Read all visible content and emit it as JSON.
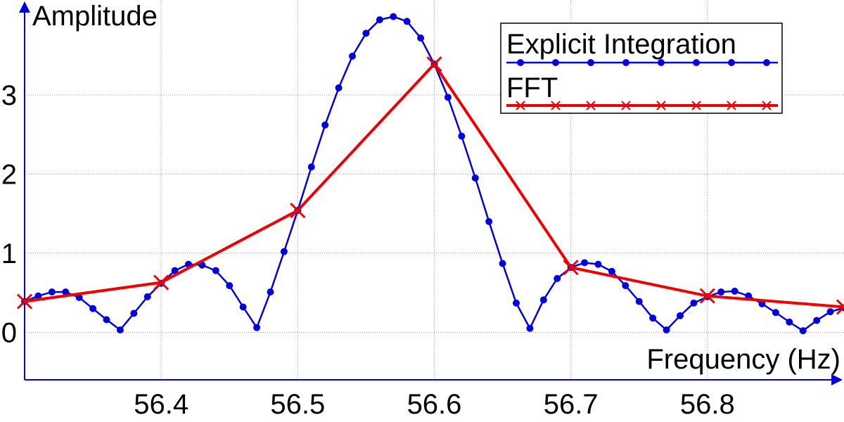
{
  "chart_data": {
    "type": "line",
    "xlabel": "Frequency (Hz)",
    "ylabel": "Amplitude",
    "xlim": [
      56.3,
      56.9
    ],
    "ylim": [
      -0.6,
      4.2
    ],
    "xticks": [
      "56.4",
      "56.5",
      "56.6",
      "56.7",
      "56.8"
    ],
    "yticks": [
      "0",
      "1",
      "2",
      "3"
    ],
    "grid": true,
    "legend": "top-right",
    "series": [
      {
        "name": "Explicit Integration",
        "color": "#0000dd",
        "marker": "dot",
        "x": [
          56.3,
          56.31,
          56.32,
          56.33,
          56.34,
          56.35,
          56.36,
          56.37,
          56.38,
          56.39,
          56.4,
          56.41,
          56.42,
          56.43,
          56.44,
          56.45,
          56.46,
          56.47,
          56.48,
          56.49,
          56.5,
          56.51,
          56.52,
          56.53,
          56.54,
          56.55,
          56.56,
          56.57,
          56.58,
          56.59,
          56.6,
          56.61,
          56.62,
          56.63,
          56.64,
          56.65,
          56.66,
          56.67,
          56.68,
          56.69,
          56.7,
          56.71,
          56.72,
          56.73,
          56.74,
          56.75,
          56.76,
          56.77,
          56.78,
          56.79,
          56.8,
          56.81,
          56.82,
          56.83,
          56.84,
          56.85,
          56.86,
          56.87,
          56.88,
          56.89,
          56.9
        ],
        "y": [
          0.39,
          0.46,
          0.51,
          0.51,
          0.44,
          0.3,
          0.16,
          0.03,
          0.24,
          0.45,
          0.62,
          0.78,
          0.86,
          0.85,
          0.78,
          0.59,
          0.32,
          0.06,
          0.51,
          1.02,
          1.54,
          2.09,
          2.62,
          3.09,
          3.49,
          3.78,
          3.95,
          3.99,
          3.93,
          3.72,
          3.39,
          2.97,
          2.48,
          1.95,
          1.4,
          0.87,
          0.37,
          0.05,
          0.41,
          0.68,
          0.82,
          0.88,
          0.86,
          0.77,
          0.59,
          0.39,
          0.18,
          0.03,
          0.21,
          0.37,
          0.45,
          0.51,
          0.52,
          0.46,
          0.36,
          0.25,
          0.13,
          0.02,
          0.15,
          0.26,
          0.31
        ]
      },
      {
        "name": "FFT",
        "color": "#ee0000",
        "marker": "x",
        "x": [
          56.3,
          56.4,
          56.5,
          56.6,
          56.7,
          56.8,
          56.9
        ],
        "y": [
          0.39,
          0.63,
          1.54,
          3.39,
          0.82,
          0.46,
          0.32
        ]
      }
    ]
  }
}
